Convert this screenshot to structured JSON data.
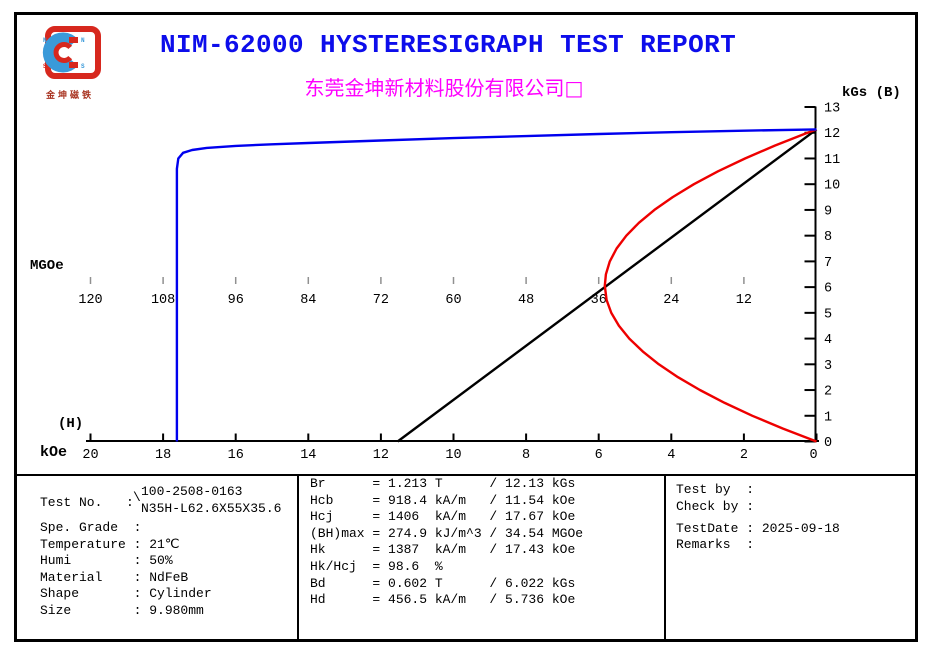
{
  "header": {
    "title": "NIM-62000 HYSTERESIGRAPH TEST REPORT",
    "company": "东莞金坤新材料股份有限公司□",
    "logo": {
      "caption": "金坤磁铁",
      "pole_labels": [
        "N",
        "S",
        "N",
        "S"
      ],
      "red": "#d7281e",
      "blue": "#3a9ad9"
    }
  },
  "chart_data": {
    "type": "line",
    "title": "",
    "grid": false,
    "axes": {
      "h": {
        "label": "(H)",
        "unit": "kOe",
        "range": [
          20,
          0
        ],
        "ticks": [
          20,
          18,
          16,
          14,
          12,
          10,
          8,
          6,
          4,
          2,
          0
        ]
      },
      "b": {
        "unit_label": "kGs (B)",
        "range": [
          0,
          13
        ],
        "position": "right",
        "ticks": [
          0,
          1,
          2,
          3,
          4,
          5,
          6,
          7,
          8,
          9,
          10,
          11,
          12,
          13
        ]
      },
      "bh": {
        "unit": "MGOe",
        "range": [
          120,
          0
        ],
        "ticks": [
          120,
          108,
          96,
          84,
          72,
          60,
          48,
          36,
          24,
          12
        ]
      }
    },
    "series": [
      {
        "name": "B-H normal demagnetization line",
        "color": "#000000",
        "x_axis": "h",
        "points": [
          [
            11.54,
            0
          ],
          [
            0,
            12.13
          ]
        ]
      },
      {
        "name": "BH energy product curve",
        "color": "#ee0000",
        "x_axis": "bh",
        "points": [
          [
            0,
            0
          ],
          [
            5.53,
            0.5
          ],
          [
            10.59,
            1
          ],
          [
            15.17,
            1.5
          ],
          [
            19.27,
            2
          ],
          [
            22.9,
            2.5
          ],
          [
            26.06,
            3
          ],
          [
            28.73,
            3.5
          ],
          [
            30.94,
            4
          ],
          [
            32.66,
            4.5
          ],
          [
            33.92,
            5
          ],
          [
            34.69,
            5.5
          ],
          [
            34.99,
            6.05
          ],
          [
            34.81,
            6.5
          ],
          [
            34.16,
            7
          ],
          [
            33.04,
            7.5
          ],
          [
            31.43,
            8
          ],
          [
            29.35,
            8.5
          ],
          [
            26.8,
            9
          ],
          [
            23.77,
            9.5
          ],
          [
            20.26,
            10
          ],
          [
            16.28,
            10.5
          ],
          [
            11.82,
            11
          ],
          [
            6.89,
            11.5
          ],
          [
            1.48,
            12
          ],
          [
            0,
            12.13
          ]
        ]
      },
      {
        "name": "J-H intrinsic demagnetization curve",
        "color": "#0000ee",
        "x_axis": "h",
        "points": [
          [
            17.62,
            0
          ],
          [
            17.62,
            10.6
          ],
          [
            17.58,
            11.0
          ],
          [
            17.45,
            11.22
          ],
          [
            17.2,
            11.33
          ],
          [
            16.8,
            11.41
          ],
          [
            16,
            11.49
          ],
          [
            15,
            11.55
          ],
          [
            14,
            11.6
          ],
          [
            12,
            11.7
          ],
          [
            10,
            11.79
          ],
          [
            8,
            11.87
          ],
          [
            6,
            11.95
          ],
          [
            4,
            12.02
          ],
          [
            2,
            12.08
          ],
          [
            0,
            12.13
          ]
        ]
      }
    ]
  },
  "test_info": {
    "test_no": {
      "label": "Test No.",
      "colon": ":",
      "connector": "\\",
      "values": [
        "100-2508-0163",
        "N35H-L62.6X55X35.6"
      ]
    },
    "rows": [
      {
        "label": "Spe. Grade",
        "value": ""
      },
      {
        "label": "Temperature",
        "value": "21℃"
      },
      {
        "label": "Humi",
        "value": "50%"
      },
      {
        "label": "Material",
        "value": "NdFeB"
      },
      {
        "label": "Shape",
        "value": "Cylinder"
      },
      {
        "label": "Size",
        "value": "9.980mm"
      }
    ]
  },
  "results": {
    "rows": [
      {
        "name": "Br",
        "si_value": "1.213",
        "si_unit": "T",
        "cgs_value": "12.13",
        "cgs_unit": "kGs"
      },
      {
        "name": "Hcb",
        "si_value": "918.4",
        "si_unit": "kA/m",
        "cgs_value": "11.54",
        "cgs_unit": "kOe"
      },
      {
        "name": "Hcj",
        "si_value": "1406",
        "si_unit": "kA/m",
        "cgs_value": "17.67",
        "cgs_unit": "kOe"
      },
      {
        "name": "(BH)max",
        "si_value": "274.9",
        "si_unit": "kJ/m^3",
        "cgs_value": "34.54",
        "cgs_unit": "MGOe"
      },
      {
        "name": "Hk",
        "si_value": "1387",
        "si_unit": "kA/m",
        "cgs_value": "17.43",
        "cgs_unit": "kOe"
      },
      {
        "name": "Hk/Hcj",
        "si_value": "98.6",
        "si_unit": "%",
        "cgs_value": "",
        "cgs_unit": ""
      },
      {
        "name": "Bd",
        "si_value": "0.602",
        "si_unit": "T",
        "cgs_value": "6.022",
        "cgs_unit": "kGs"
      },
      {
        "name": "Hd",
        "si_value": "456.5",
        "si_unit": "kA/m",
        "cgs_value": "5.736",
        "cgs_unit": "kOe"
      }
    ]
  },
  "signoff": {
    "rows": [
      {
        "label": "Test by",
        "value": ""
      },
      {
        "label": "Check by",
        "value": ""
      },
      {
        "label": "TestDate",
        "value": "2025-09-18"
      },
      {
        "label": "Remarks",
        "value": ""
      }
    ]
  }
}
